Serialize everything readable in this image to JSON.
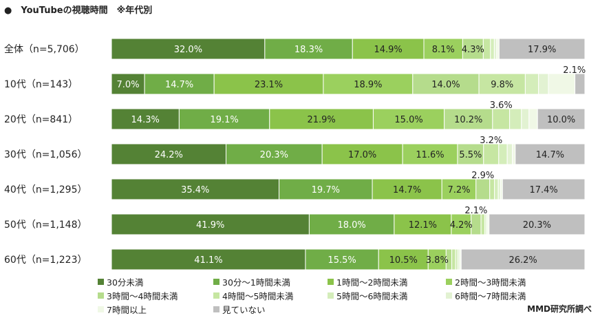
{
  "title": "●　YouTubeの視聴時間　※年代別",
  "source": "MMD研究所調べ",
  "chart_data": {
    "type": "bar",
    "orientation": "horizontal",
    "stacked": "percent",
    "categories": [
      "全体（n=5,706）",
      "10代（n=143）",
      "20代（n=841）",
      "30代（n=1,056）",
      "40代（n=1,295）",
      "50代（n=1,148）",
      "60代（n=1,223）"
    ],
    "series": [
      {
        "name": "30分未満",
        "color": "#548235",
        "values": [
          32.0,
          7.0,
          14.3,
          24.2,
          35.4,
          41.9,
          41.1
        ]
      },
      {
        "name": "30分～1時間未満",
        "color": "#70AD47",
        "values": [
          18.3,
          14.7,
          19.1,
          20.3,
          19.7,
          18.0,
          15.5
        ]
      },
      {
        "name": "1時間～2時間未満",
        "color": "#8BC34A",
        "values": [
          14.9,
          23.1,
          21.9,
          17.0,
          14.7,
          12.1,
          10.5
        ]
      },
      {
        "name": "2時間～3時間未満",
        "color": "#9BD05E",
        "values": [
          8.1,
          18.9,
          15.0,
          11.6,
          7.2,
          4.2,
          3.8
        ]
      },
      {
        "name": "3時間～4時間未満",
        "color": "#B5DC8C",
        "values": [
          4.3,
          14.0,
          10.2,
          5.5,
          2.9,
          2.1,
          1.2
        ]
      },
      {
        "name": "4時間～5時間未満",
        "color": "#C6E6A2",
        "values": [
          1.5,
          9.8,
          3.6,
          3.2,
          1.0,
          0.8,
          0.8
        ]
      },
      {
        "name": "5時間～6時間未満",
        "color": "#D4EDBA",
        "values": [
          0.8,
          2.8,
          2.5,
          1.8,
          0.8,
          0.3,
          0.5
        ]
      },
      {
        "name": "6時間～7時間未満",
        "color": "#E2F2D2",
        "values": [
          0.5,
          2.1,
          1.6,
          1.1,
          0.5,
          0.3,
          0.4
        ]
      },
      {
        "name": "7時間以上",
        "color": "#F0F8E6",
        "values": [
          0.5,
          5.6,
          1.8,
          0.6,
          0.4,
          0.3,
          0.3
        ]
      },
      {
        "name": "見ていない",
        "color": "#BFBFBF",
        "values": [
          17.9,
          2.1,
          10.0,
          14.7,
          17.4,
          20.3,
          26.2
        ]
      }
    ],
    "labels": [
      [
        "32.0%",
        "18.3%",
        "14.9%",
        "8.1%",
        "4.3%",
        "",
        "",
        "",
        "",
        "17.9%"
      ],
      [
        "7.0%",
        "14.7%",
        "23.1%",
        "18.9%",
        "14.0%",
        "9.8%",
        "",
        "",
        "",
        "2.1%"
      ],
      [
        "14.3%",
        "19.1%",
        "21.9%",
        "15.0%",
        "10.2%",
        "3.6%",
        "",
        "",
        "",
        "10.0%"
      ],
      [
        "24.2%",
        "20.3%",
        "17.0%",
        "11.6%",
        "5.5%",
        "3.2%",
        "",
        "",
        "",
        "14.7%"
      ],
      [
        "35.4%",
        "19.7%",
        "14.7%",
        "7.2%",
        "2.9%",
        "",
        "",
        "",
        "",
        "17.4%"
      ],
      [
        "41.9%",
        "18.0%",
        "12.1%",
        "4.2%",
        "2.1%",
        "",
        "",
        "",
        "",
        "20.3%"
      ],
      [
        "41.1%",
        "15.5%",
        "10.5%",
        "3.8%",
        "",
        "",
        "",
        "",
        "",
        "26.2%"
      ]
    ],
    "legend_position": "bottom",
    "grid": false
  }
}
